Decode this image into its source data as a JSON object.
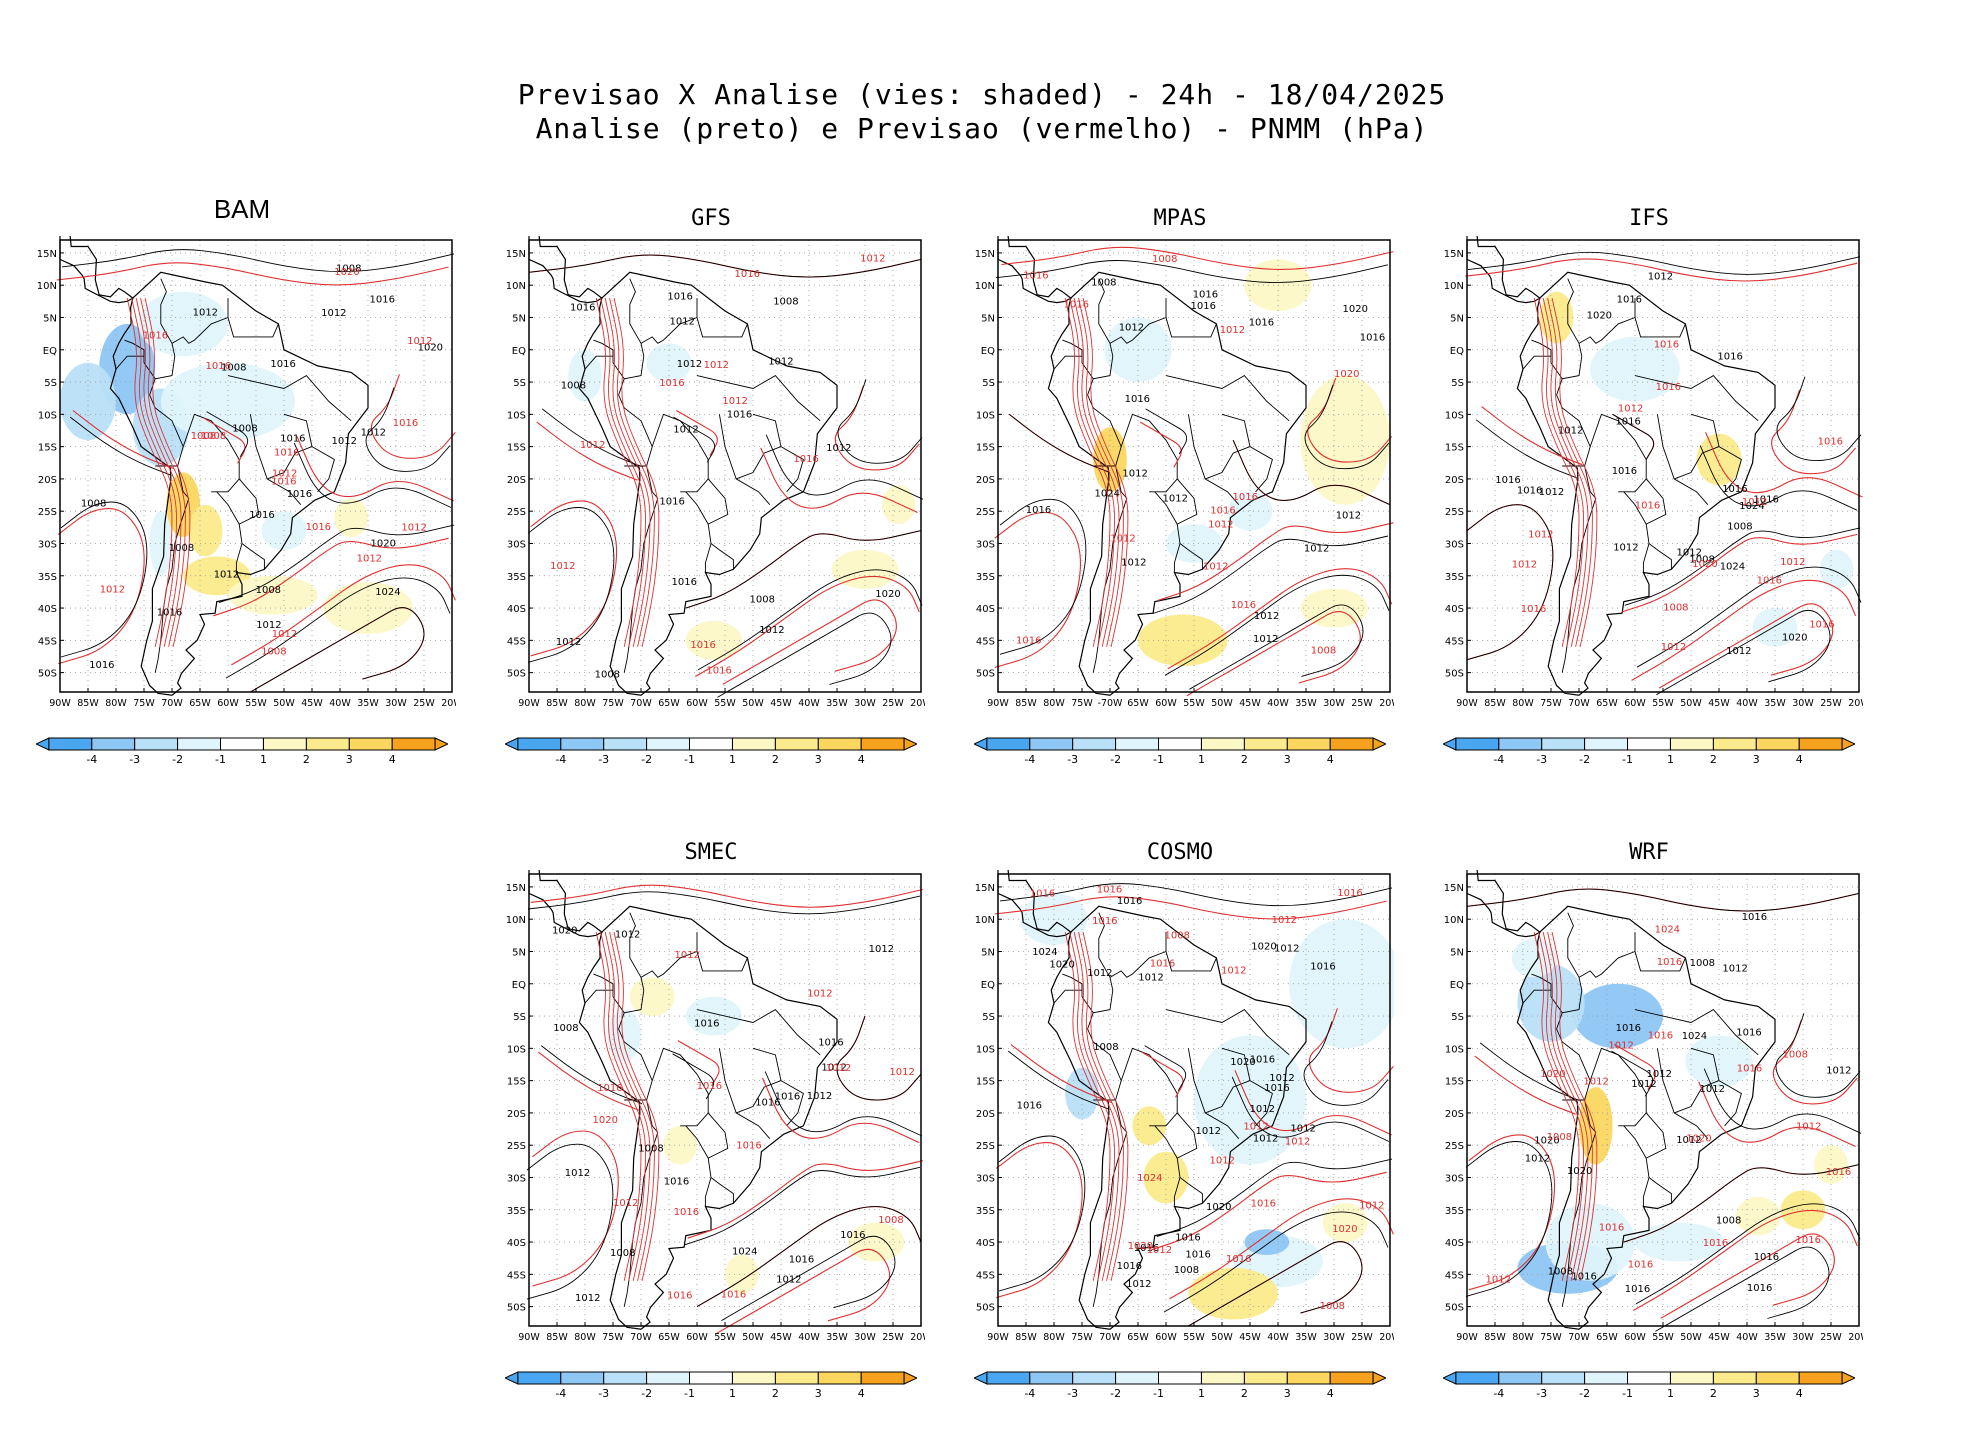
{
  "title": {
    "line1": "Previsao X Analise (vies: shaded) - 24h - 18/04/2025",
    "line2": "Analise (preto) e Previsao (vermelho) - PNMM (hPa)"
  },
  "colors": {
    "analysis_contour": "#000000",
    "forecast_contour": "#e03030",
    "bias_neg4": "#4aa6f0",
    "bias_neg3": "#8ec6f4",
    "bias_neg2": "#b9e0f8",
    "bias_neg1": "#dff4fb",
    "bias_pos1": "#fcf8c6",
    "bias_pos2": "#fbeb8c",
    "bias_pos3": "#fbd760",
    "bias_pos4": "#f6a21e"
  },
  "axis": {
    "lat_labels": [
      "15N",
      "10N",
      "5N",
      "EQ",
      "5S",
      "10S",
      "15S",
      "20S",
      "25S",
      "30S",
      "35S",
      "40S",
      "45S",
      "50S"
    ],
    "lon_labels": [
      "90W",
      "85W",
      "80W",
      "75W",
      "70W",
      "65W",
      "60W",
      "55W",
      "50W",
      "45W",
      "40W",
      "35W",
      "30W",
      "25W",
      "20W"
    ],
    "lon_labels_mpas": [
      "90W",
      "85W",
      "80W",
      "75W",
      "-70W",
      "65W",
      "60W",
      "55W",
      "50W",
      "45W",
      "40W",
      "35W",
      "30W",
      "25W",
      "20W"
    ]
  },
  "colorbar": {
    "ticks": [
      "-4",
      "-3",
      "-2",
      "-1",
      "1",
      "2",
      "3",
      "4"
    ]
  },
  "panels": [
    {
      "name": "BAM",
      "black_labels": [
        "1012",
        "1016",
        "1008",
        "1008",
        "1012",
        "1008",
        "1016",
        "1012",
        "1008",
        "1008",
        "1016",
        "1016",
        "1012",
        "1016",
        "1012",
        "1008",
        "1016",
        "1020",
        "1012",
        "1024",
        "1020",
        "1016"
      ],
      "red_labels": [
        "1012",
        "1008",
        "1008",
        "1012",
        "1008",
        "1012",
        "1016",
        "1016",
        "1012",
        "1016",
        "1016",
        "1012",
        "1016",
        "1020",
        "1016",
        "1012"
      ],
      "patches": [
        {
          "lon": -78,
          "lat": -3,
          "rx": 5,
          "ry": 7,
          "cls": -3
        },
        {
          "lon": -72,
          "lat": -12,
          "rx": 5,
          "ry": 6,
          "cls": -2
        },
        {
          "lon": -60,
          "lat": -8,
          "rx": 12,
          "ry": 6,
          "cls": -1
        },
        {
          "lon": -68,
          "lat": 4,
          "rx": 8,
          "ry": 5,
          "cls": -1
        },
        {
          "lon": -85,
          "lat": -8,
          "rx": 5,
          "ry": 6,
          "cls": -2
        },
        {
          "lon": -68,
          "lat": -24,
          "rx": 3,
          "ry": 5,
          "cls": 3
        },
        {
          "lon": -64,
          "lat": -28,
          "rx": 3,
          "ry": 4,
          "cls": 2
        },
        {
          "lon": -62,
          "lat": -35,
          "rx": 6,
          "ry": 3,
          "cls": 2
        },
        {
          "lon": -52,
          "lat": -38,
          "rx": 8,
          "ry": 3,
          "cls": 1
        },
        {
          "lon": -35,
          "lat": -40,
          "rx": 8,
          "ry": 4,
          "cls": 1
        },
        {
          "lon": -38,
          "lat": -26,
          "rx": 3,
          "ry": 3,
          "cls": 1
        },
        {
          "lon": -72,
          "lat": -30,
          "rx": 2,
          "ry": 5,
          "cls": -1
        },
        {
          "lon": -50,
          "lat": -28,
          "rx": 4,
          "ry": 3,
          "cls": -1
        }
      ]
    },
    {
      "name": "GFS",
      "black_labels": [
        "1008",
        "1012",
        "1016",
        "1012",
        "1008",
        "1012",
        "1016",
        "1012",
        "1008",
        "1012",
        "1016",
        "1020",
        "1016",
        "1012",
        "1016",
        "1008",
        "1012"
      ],
      "red_labels": [
        "1012",
        "1016",
        "1012",
        "1012",
        "1012",
        "1016",
        "1016",
        "1016",
        "1016",
        "1012"
      ],
      "patches": [
        {
          "lon": -80,
          "lat": -4,
          "rx": 3,
          "ry": 4,
          "cls": -1
        },
        {
          "lon": -65,
          "lat": -2,
          "rx": 4,
          "ry": 3,
          "cls": -1
        },
        {
          "lon": -30,
          "lat": -34,
          "rx": 6,
          "ry": 3,
          "cls": 1
        },
        {
          "lon": -57,
          "lat": -45,
          "rx": 5,
          "ry": 3,
          "cls": 1
        },
        {
          "lon": -24,
          "lat": -24,
          "rx": 3,
          "ry": 3,
          "cls": 1
        }
      ]
    },
    {
      "name": "MPAS",
      "black_labels": [
        "1016",
        "1012",
        "1012",
        "1012",
        "1012",
        "1016",
        "1012",
        "1016",
        "1012",
        "1008",
        "1016",
        "1012",
        "1012",
        "1016",
        "1024",
        "1020",
        "1016"
      ],
      "red_labels": [
        "1008",
        "1012",
        "1012",
        "1016",
        "1016",
        "1016",
        "1012",
        "1016",
        "1012",
        "1008",
        "1016",
        "1020",
        "1016"
      ],
      "patches": [
        {
          "lon": -28,
          "lat": -14,
          "rx": 8,
          "ry": 10,
          "cls": 1
        },
        {
          "lon": -40,
          "lat": 10,
          "rx": 6,
          "ry": 4,
          "cls": 1
        },
        {
          "lon": -70,
          "lat": -17,
          "rx": 3,
          "ry": 5,
          "cls": 3
        },
        {
          "lon": -30,
          "lat": -40,
          "rx": 6,
          "ry": 3,
          "cls": 1
        },
        {
          "lon": -57,
          "lat": -45,
          "rx": 8,
          "ry": 4,
          "cls": 2
        },
        {
          "lon": -65,
          "lat": 0,
          "rx": 6,
          "ry": 5,
          "cls": -1
        },
        {
          "lon": -55,
          "lat": -30,
          "rx": 5,
          "ry": 3,
          "cls": -1
        },
        {
          "lon": -45,
          "lat": -25,
          "rx": 4,
          "ry": 3,
          "cls": -1
        }
      ]
    },
    {
      "name": "IFS",
      "black_labels": [
        "1012",
        "1016",
        "1008",
        "1016",
        "1012",
        "1012",
        "1016",
        "1016",
        "1016",
        "1020",
        "1016",
        "1012",
        "1016",
        "1024",
        "1012",
        "1008",
        "1012",
        "1024",
        "1020",
        "1016"
      ],
      "red_labels": [
        "1012",
        "1016",
        "1008",
        "1012",
        "1016",
        "1016",
        "1012",
        "1016",
        "1012",
        "1016",
        "1016",
        "1012",
        "1016",
        "1012",
        "1020"
      ],
      "patches": [
        {
          "lon": -74,
          "lat": 5,
          "rx": 3,
          "ry": 4,
          "cls": 2
        },
        {
          "lon": -60,
          "lat": -3,
          "rx": 8,
          "ry": 5,
          "cls": -1
        },
        {
          "lon": -45,
          "lat": -17,
          "rx": 4,
          "ry": 4,
          "cls": 2
        },
        {
          "lon": -35,
          "lat": -43,
          "rx": 4,
          "ry": 3,
          "cls": -1
        },
        {
          "lon": -24,
          "lat": -34,
          "rx": 3,
          "ry": 3,
          "cls": -1
        }
      ]
    },
    {
      "name": "SMEC",
      "black_labels": [
        "1016",
        "1008",
        "1012",
        "1016",
        "1012",
        "1016",
        "1016",
        "1012",
        "1012",
        "1008",
        "1016",
        "1012",
        "1020",
        "1016",
        "1016",
        "1008",
        "1012",
        "1012",
        "1024"
      ],
      "red_labels": [
        "1016",
        "1012",
        "1012",
        "1012",
        "1016",
        "1016",
        "1012",
        "1016",
        "1016",
        "1016",
        "1008",
        "1012",
        "1020"
      ],
      "patches": [
        {
          "lon": -68,
          "lat": -2,
          "rx": 4,
          "ry": 3,
          "cls": 1
        },
        {
          "lon": -57,
          "lat": -5,
          "rx": 5,
          "ry": 3,
          "cls": -1
        },
        {
          "lon": -73,
          "lat": -8,
          "rx": 3,
          "ry": 4,
          "cls": -1
        },
        {
          "lon": -63,
          "lat": -25,
          "rx": 3,
          "ry": 3,
          "cls": 1
        },
        {
          "lon": -52,
          "lat": -45,
          "rx": 3,
          "ry": 3,
          "cls": 1
        },
        {
          "lon": -28,
          "lat": -40,
          "rx": 5,
          "ry": 3,
          "cls": 1
        }
      ]
    },
    {
      "name": "COSMO",
      "black_labels": [
        "1012",
        "1012",
        "1016",
        "1012",
        "1008",
        "1012",
        "1016",
        "1012",
        "1012",
        "1016",
        "1016",
        "1020",
        "1012",
        "1016",
        "1012",
        "1016",
        "1008",
        "1012",
        "1016",
        "1020",
        "1020",
        "1024",
        "1016",
        "1016",
        "1020"
      ],
      "red_labels": [
        "1008",
        "1012",
        "1008",
        "1012",
        "1012",
        "1016",
        "1016",
        "1016",
        "1012",
        "1012",
        "1016",
        "1012",
        "1016",
        "1016",
        "1020",
        "1012",
        "1020",
        "1024",
        "1016"
      ],
      "patches": [
        {
          "lon": -28,
          "lat": 0,
          "rx": 10,
          "ry": 10,
          "cls": -1
        },
        {
          "lon": -45,
          "lat": -18,
          "rx": 10,
          "ry": 10,
          "cls": -1
        },
        {
          "lon": -40,
          "lat": -43,
          "rx": 8,
          "ry": 4,
          "cls": -1
        },
        {
          "lon": -42,
          "lat": -40,
          "rx": 4,
          "ry": 2,
          "cls": -3
        },
        {
          "lon": -60,
          "lat": -30,
          "rx": 4,
          "ry": 4,
          "cls": 2
        },
        {
          "lon": -63,
          "lat": -22,
          "rx": 3,
          "ry": 3,
          "cls": 2
        },
        {
          "lon": -48,
          "lat": -48,
          "rx": 8,
          "ry": 4,
          "cls": 2
        },
        {
          "lon": -28,
          "lat": -37,
          "rx": 4,
          "ry": 3,
          "cls": 1
        },
        {
          "lon": -80,
          "lat": 10,
          "rx": 6,
          "ry": 4,
          "cls": -1
        },
        {
          "lon": -75,
          "lat": -17,
          "rx": 3,
          "ry": 4,
          "cls": -2
        }
      ]
    },
    {
      "name": "WRF",
      "black_labels": [
        "1008",
        "1012",
        "1012",
        "1016",
        "1016",
        "1012",
        "1008",
        "1012",
        "1016",
        "1016",
        "1012",
        "1020",
        "1016",
        "1024",
        "1016",
        "1012",
        "1008",
        "1012",
        "1020",
        "1016"
      ],
      "red_labels": [
        "1016",
        "1008",
        "1012",
        "1016",
        "1016",
        "1012",
        "1008",
        "1016",
        "1016",
        "1012",
        "1016",
        "1020",
        "1024",
        "1016",
        "1020",
        "1012",
        "1016"
      ],
      "patches": [
        {
          "lon": -63,
          "lat": -5,
          "rx": 8,
          "ry": 5,
          "cls": -3
        },
        {
          "lon": -75,
          "lat": -3,
          "rx": 6,
          "ry": 6,
          "cls": -2
        },
        {
          "lon": -78,
          "lat": 4,
          "rx": 4,
          "ry": 3,
          "cls": -1
        },
        {
          "lon": -67,
          "lat": -22,
          "rx": 3,
          "ry": 6,
          "cls": 3
        },
        {
          "lon": -72,
          "lat": -44,
          "rx": 9,
          "ry": 4,
          "cls": -3
        },
        {
          "lon": -68,
          "lat": -40,
          "rx": 8,
          "ry": 6,
          "cls": -1
        },
        {
          "lon": -52,
          "lat": -40,
          "rx": 8,
          "ry": 3,
          "cls": -1
        },
        {
          "lon": -38,
          "lat": -36,
          "rx": 4,
          "ry": 3,
          "cls": 1
        },
        {
          "lon": -30,
          "lat": -35,
          "rx": 4,
          "ry": 3,
          "cls": 2
        },
        {
          "lon": -45,
          "lat": -12,
          "rx": 6,
          "ry": 4,
          "cls": -1
        },
        {
          "lon": -25,
          "lat": -28,
          "rx": 3,
          "ry": 3,
          "cls": 1
        }
      ]
    }
  ]
}
